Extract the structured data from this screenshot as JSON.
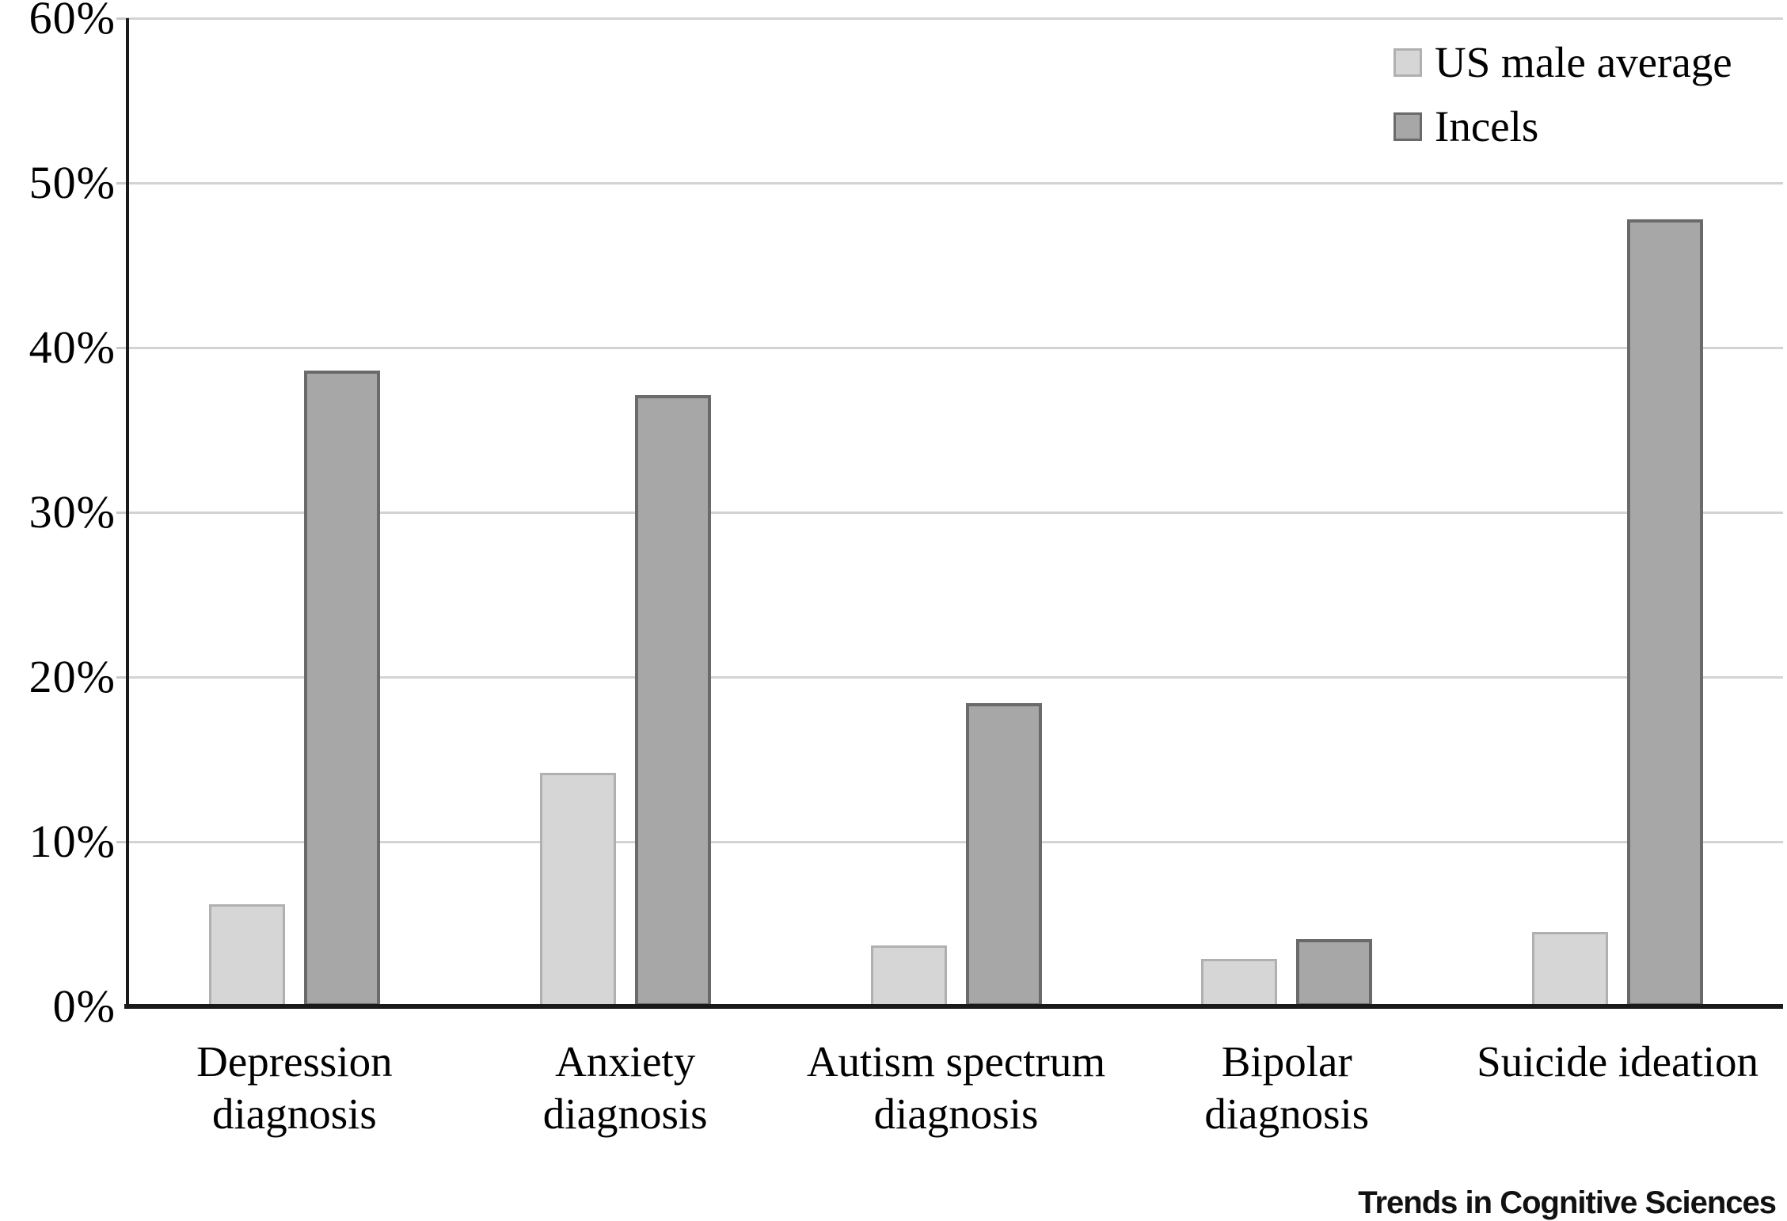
{
  "figure": {
    "source_label": "Trends in Cognitive Sciences"
  },
  "legend": {
    "items": [
      {
        "label": "US male average",
        "swatch": "light-gray-square"
      },
      {
        "label": "Incels",
        "swatch": "dark-gray-square"
      }
    ]
  },
  "colors": {
    "background": "#ffffff",
    "us_male_fill": "#d6d6d6",
    "us_male_border": "#b0b0b0",
    "incels_fill": "#a7a7a7",
    "incels_border": "#6a6a6a",
    "gridline": "#d3d3d3",
    "axis": "#1a1a1a",
    "text": "#000000"
  },
  "chart_data": {
    "type": "bar",
    "title": "",
    "xlabel": "",
    "ylabel": "",
    "categories": [
      "Depression diagnosis",
      "Anxiety diagnosis",
      "Autism spectrum diagnosis",
      "Bipolar diagnosis",
      "Suicide ideation"
    ],
    "category_label_lines": [
      [
        "Depression",
        "diagnosis"
      ],
      [
        "Anxiety",
        "diagnosis"
      ],
      [
        "Autism spectrum",
        "diagnosis"
      ],
      [
        "Bipolar",
        "diagnosis"
      ],
      [
        "Suicide ideation"
      ]
    ],
    "series": [
      {
        "name": "US male average",
        "values": [
          6.2,
          14.2,
          3.7,
          2.9,
          4.5
        ]
      },
      {
        "name": "Incels",
        "values": [
          38.6,
          37.1,
          18.4,
          4.1,
          47.8
        ]
      }
    ],
    "ylim": [
      0,
      60
    ],
    "ytick_interval": 10,
    "ytick_labels": [
      "0%",
      "10%",
      "20%",
      "30%",
      "40%",
      "50%",
      "60%"
    ],
    "grid": "horizontal",
    "legend_position": "top-right"
  }
}
